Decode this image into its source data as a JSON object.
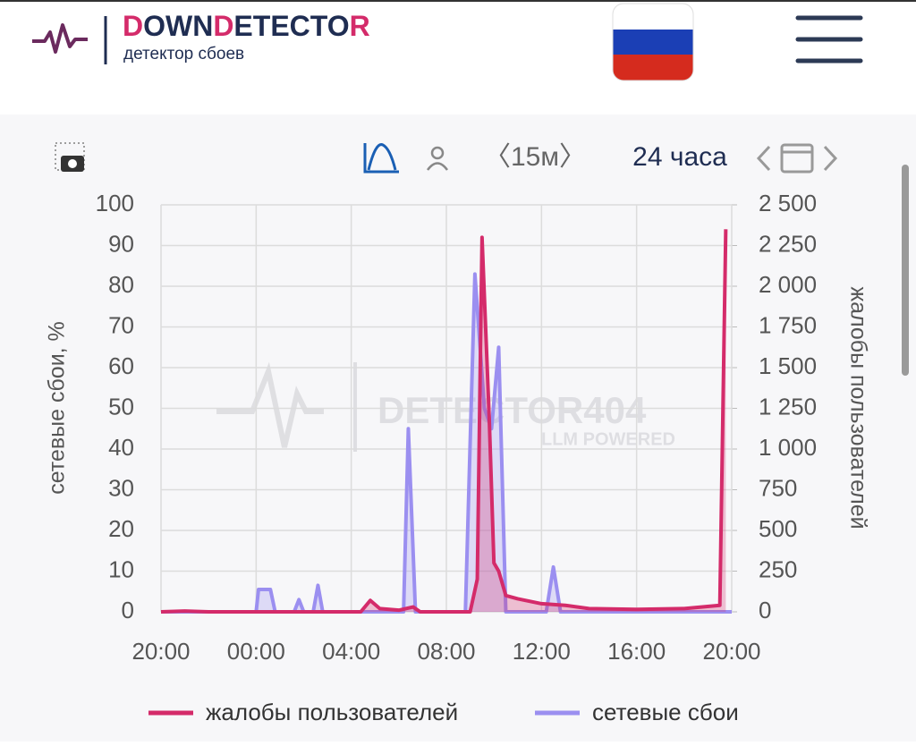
{
  "header": {
    "logo_parts": [
      "D",
      "OWN",
      "D",
      "ETECTO",
      "R"
    ],
    "subtitle": "детектор сбоев"
  },
  "toolbar": {
    "interval": "〈15м〉",
    "range": "24 часа"
  },
  "watermark": {
    "title": "DETECTOR404",
    "subtitle": "LLM POWERED"
  },
  "chart_data": {
    "type": "line",
    "ylabel": "сетевые сбои, %",
    "y2label": "жалобы пользователей",
    "xlim": [
      0,
      24
    ],
    "xticks": [
      {
        "value": 0,
        "label": "20:00"
      },
      {
        "value": 4,
        "label": "00:00"
      },
      {
        "value": 8,
        "label": "04:00"
      },
      {
        "value": 12,
        "label": "08:00"
      },
      {
        "value": 16,
        "label": "12:00"
      },
      {
        "value": 20,
        "label": "16:00"
      },
      {
        "value": 24,
        "label": "20:00"
      }
    ],
    "ylim": [
      0,
      100
    ],
    "yticks": [
      0,
      10,
      20,
      30,
      40,
      50,
      60,
      70,
      80,
      90,
      100
    ],
    "y2lim": [
      0,
      2500
    ],
    "y2ticks": [
      0,
      250,
      500,
      750,
      {
        "value": 1000,
        "label": "1 000"
      },
      {
        "value": 1250,
        "label": "1 250"
      },
      {
        "value": 1500,
        "label": "1 500"
      },
      {
        "value": 1750,
        "label": "1 750"
      },
      {
        "value": 2000,
        "label": "2 000"
      },
      {
        "value": 2250,
        "label": "2 250"
      },
      {
        "value": 2500,
        "label": "2 500"
      }
    ],
    "grid": true,
    "series": [
      {
        "name": "сетевые сбои",
        "color": "#9b8ff0",
        "axis": "y",
        "x": [
          0,
          4,
          4.1,
          4.6,
          4.8,
          5.6,
          5.8,
          6.0,
          6.4,
          6.6,
          6.8,
          10.2,
          10.4,
          10.7,
          12.8,
          13.2,
          13.6,
          13.9,
          14.2,
          14.5,
          16.2,
          16.5,
          16.8,
          24
        ],
        "values": [
          0,
          0,
          5.5,
          5.5,
          0,
          0,
          3,
          0,
          0,
          6.5,
          0,
          0,
          45,
          0,
          0,
          83,
          50,
          45,
          65,
          0,
          0,
          11,
          0,
          0
        ]
      },
      {
        "name": "жалобы пользователей",
        "color": "#d42b6a",
        "axis": "y2",
        "x": [
          0,
          1,
          2,
          8.4,
          8.8,
          9.2,
          10,
          10.6,
          10.9,
          13.0,
          13.3,
          13.5,
          13.8,
          14.0,
          14.2,
          14.5,
          15,
          16,
          17,
          18,
          20,
          22,
          23.5,
          23.75
        ],
        "values": [
          0,
          5,
          0,
          0,
          70,
          20,
          10,
          30,
          0,
          0,
          200,
          2300,
          1200,
          300,
          250,
          100,
          80,
          50,
          40,
          20,
          15,
          20,
          40,
          2350
        ]
      }
    ]
  }
}
